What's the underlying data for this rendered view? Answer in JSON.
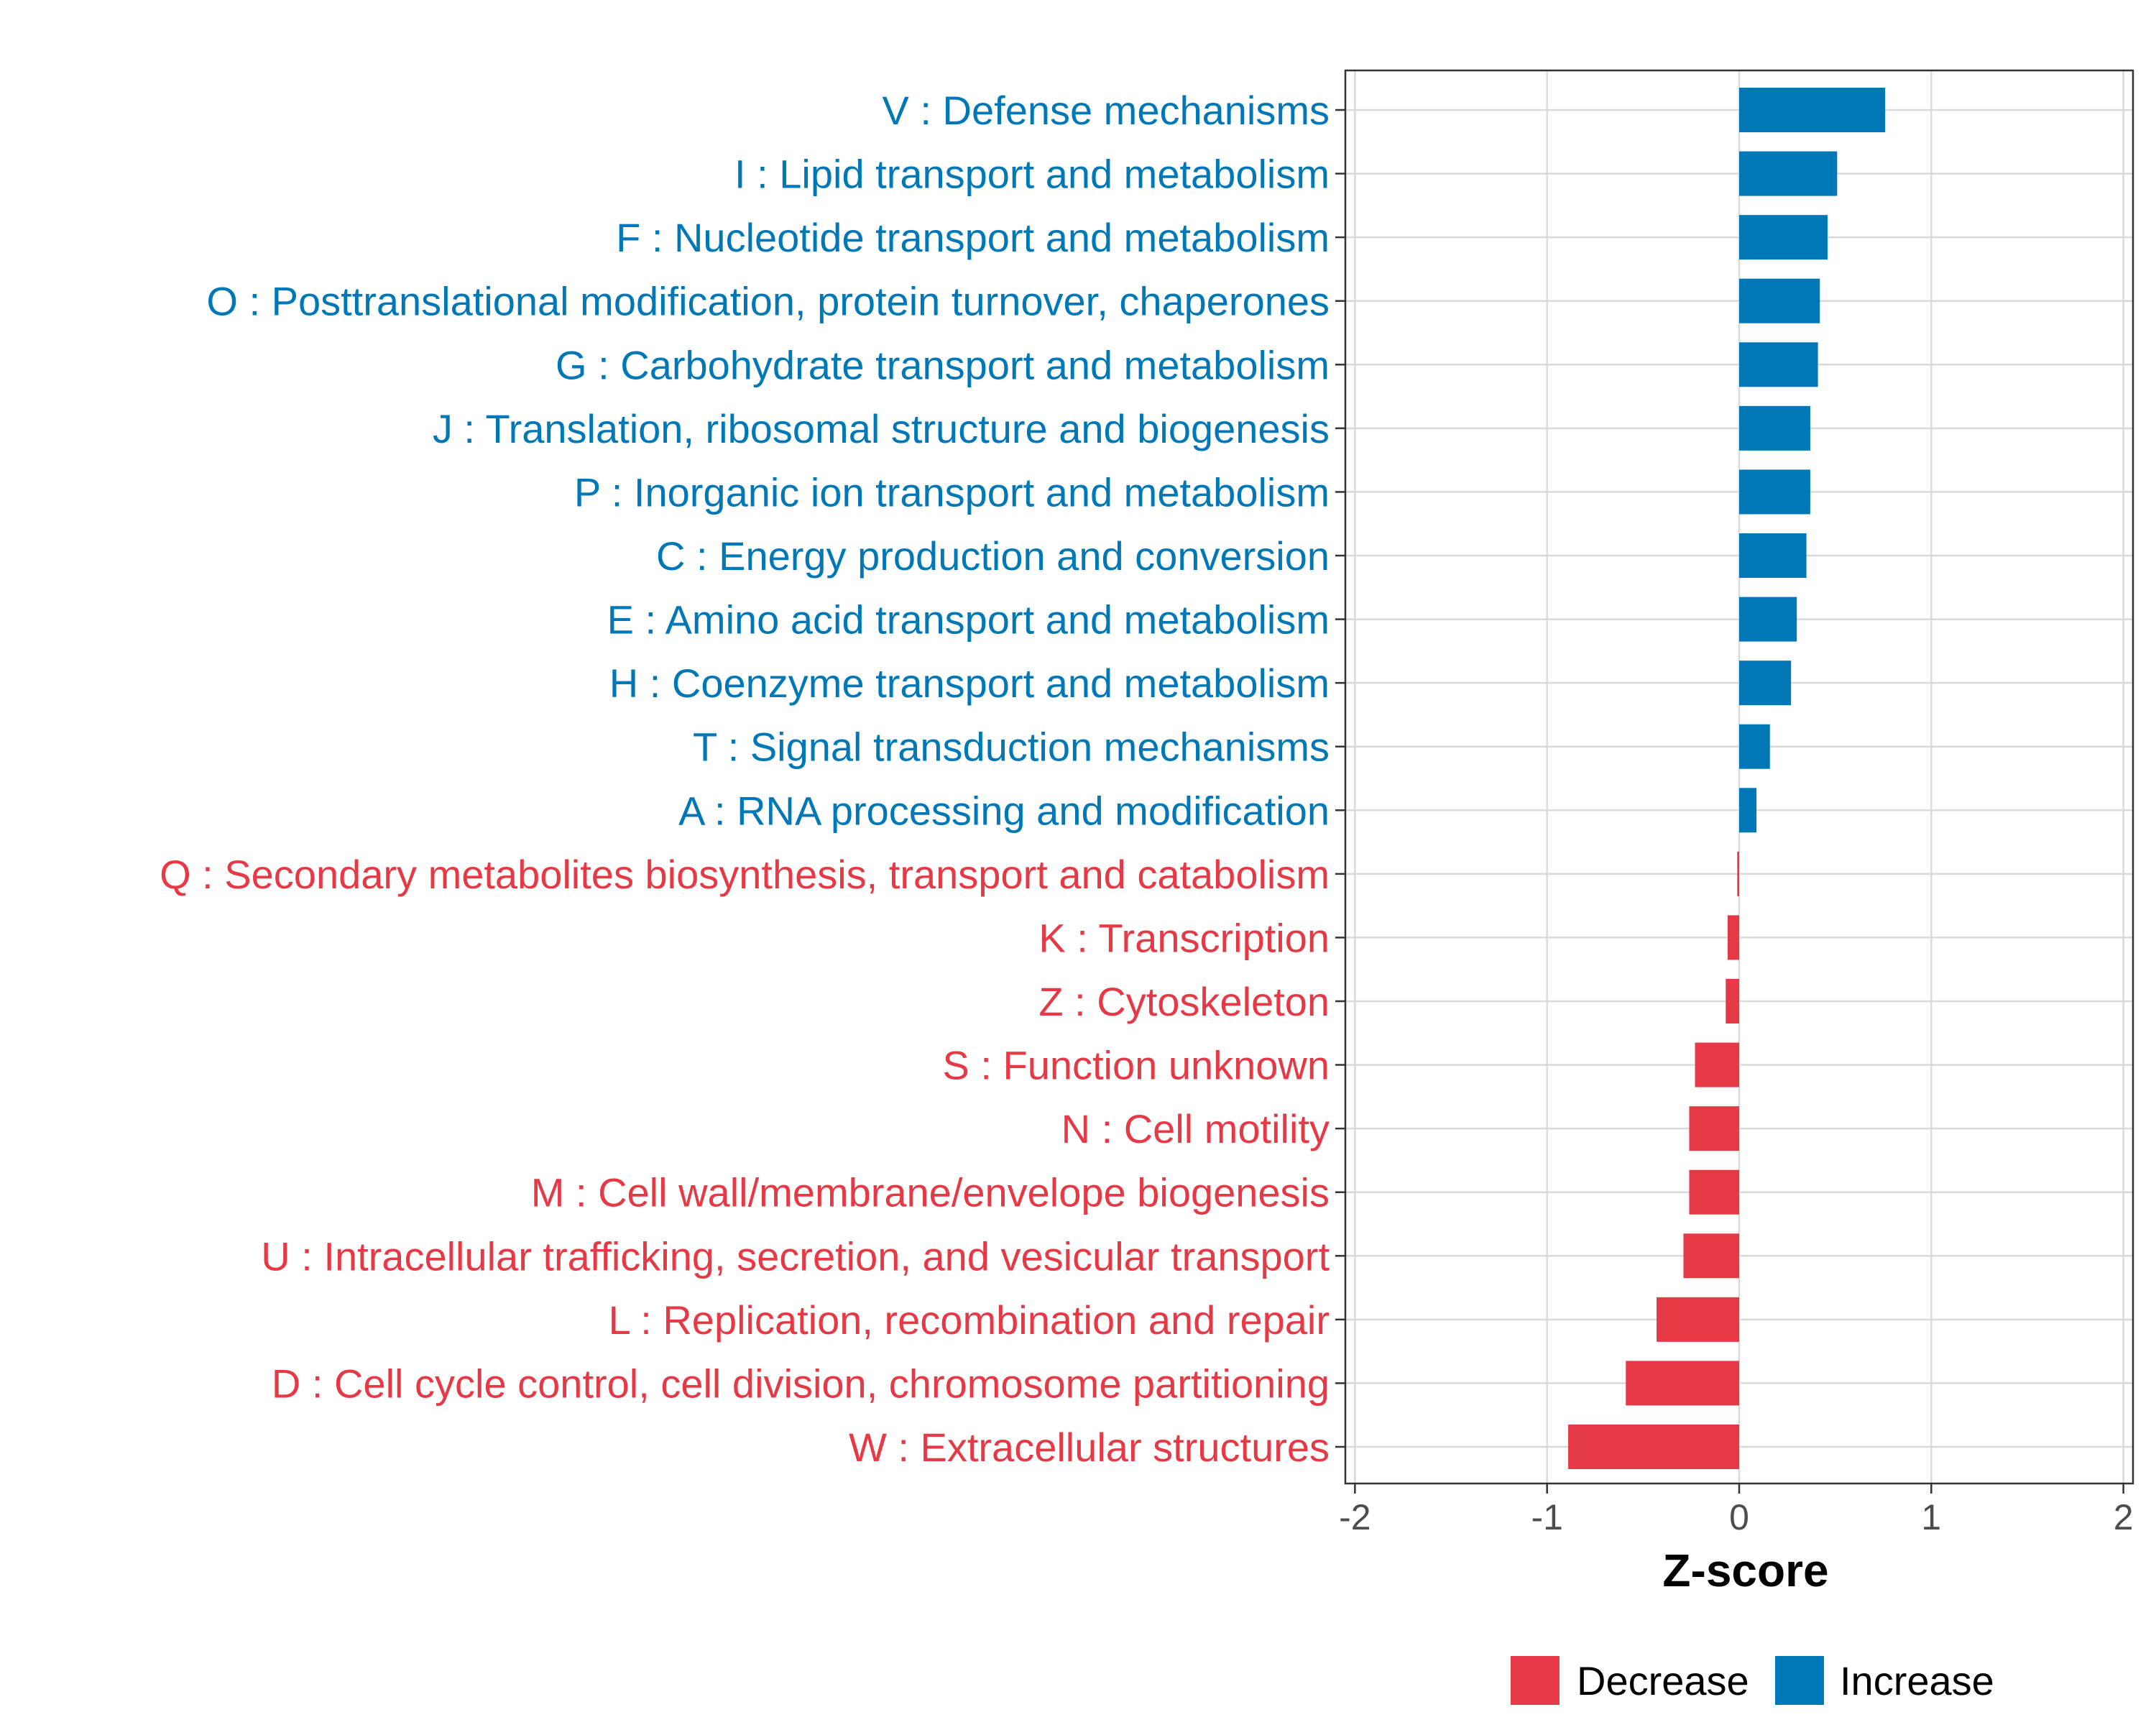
{
  "chart_data": {
    "type": "bar",
    "orientation": "horizontal",
    "xlabel": "Z-score",
    "ylabel": "",
    "xlim": [
      -2.05,
      2.05
    ],
    "xticks": [
      -2,
      -1,
      0,
      1,
      2
    ],
    "grid": true,
    "legend_position": "bottom",
    "colors": {
      "Decrease": "#e63946",
      "Increase": "#0077b6"
    },
    "legend": [
      {
        "name": "Decrease",
        "color": "#e63946"
      },
      {
        "name": "Increase",
        "color": "#0077b6"
      }
    ],
    "categories": [
      "V : Defense mechanisms",
      "I : Lipid transport and metabolism",
      "F : Nucleotide transport and metabolism",
      "O : Posttranslational modification, protein turnover, chaperones",
      "G : Carbohydrate transport and metabolism",
      "J : Translation, ribosomal structure and biogenesis",
      "P : Inorganic ion transport and metabolism",
      "C : Energy production and conversion",
      "E : Amino acid transport and metabolism",
      "H : Coenzyme transport and metabolism",
      "T : Signal transduction mechanisms",
      "A : RNA processing and modification",
      "Q : Secondary metabolites biosynthesis, transport and catabolism",
      "K : Transcription",
      "Z : Cytoskeleton",
      "S : Function unknown",
      "N : Cell motility",
      "M : Cell wall/membrane/envelope biogenesis",
      "U : Intracellular trafficking, secretion, and vesicular transport",
      "L : Replication, recombination and repair",
      "D : Cell cycle control, cell division, chromosome partitioning",
      "W : Extracellular structures"
    ],
    "values": [
      0.76,
      0.51,
      0.46,
      0.42,
      0.41,
      0.37,
      0.37,
      0.35,
      0.3,
      0.27,
      0.16,
      0.09,
      -0.01,
      -0.06,
      -0.07,
      -0.23,
      -0.26,
      -0.26,
      -0.29,
      -0.43,
      -0.59,
      -0.89
    ],
    "groups": [
      "Increase",
      "Increase",
      "Increase",
      "Increase",
      "Increase",
      "Increase",
      "Increase",
      "Increase",
      "Increase",
      "Increase",
      "Increase",
      "Increase",
      "Decrease",
      "Decrease",
      "Decrease",
      "Decrease",
      "Decrease",
      "Decrease",
      "Decrease",
      "Decrease",
      "Decrease",
      "Decrease"
    ]
  }
}
